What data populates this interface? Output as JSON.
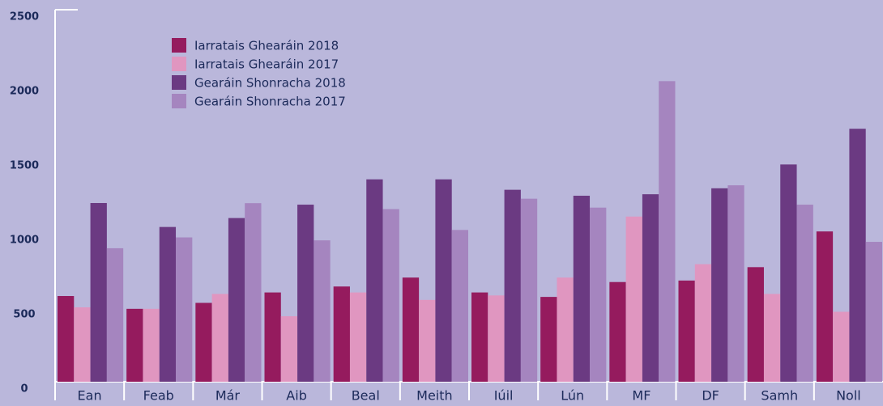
{
  "chart_data": {
    "type": "bar",
    "categories": [
      "Ean",
      "Feab",
      "Már",
      "Aib",
      "Beal",
      "Meith",
      "Iúil",
      "Lún",
      "MF",
      "DF",
      "Samh",
      "Noll"
    ],
    "series": [
      {
        "name": "Iarratais Ghearáin 2018",
        "color": "#951b5e",
        "values": [
          576,
          490,
          530,
          600,
          640,
          700,
          600,
          570,
          670,
          680,
          770,
          1010
        ]
      },
      {
        "name": "Iarratais Ghearáin 2017",
        "color": "#e096c0",
        "values": [
          500,
          490,
          590,
          440,
          600,
          550,
          580,
          700,
          1110,
          790,
          590,
          470
        ]
      },
      {
        "name": "Gearáin Shonracha 2018",
        "color": "#6b3a82",
        "values": [
          1201,
          1040,
          1100,
          1190,
          1360,
          1360,
          1290,
          1250,
          1260,
          1300,
          1460,
          1700
        ]
      },
      {
        "name": "Gearáin Shonracha 2017",
        "color": "#a585bf",
        "values": [
          897,
          970,
          1200,
          950,
          1160,
          1020,
          1230,
          1170,
          2020,
          1320,
          1190,
          940
        ]
      }
    ],
    "ylim": [
      0,
      2500
    ],
    "yticks": [
      0,
      500,
      1000,
      1500,
      2000,
      2500
    ],
    "legend": "upper-left"
  }
}
